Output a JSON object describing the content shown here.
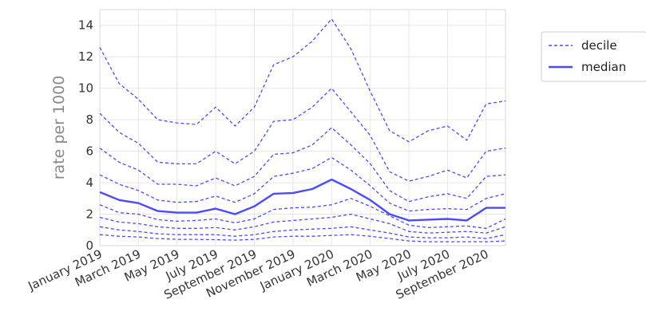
{
  "chart_data": {
    "type": "line",
    "xlabel": "",
    "ylabel": "rate per 1000",
    "ylim": [
      0,
      15
    ],
    "yticks": [
      "0",
      "2",
      "4",
      "6",
      "8",
      "10",
      "12",
      "14"
    ],
    "x": [
      "2019-01",
      "2019-02",
      "2019-03",
      "2019-04",
      "2019-05",
      "2019-06",
      "2019-07",
      "2019-08",
      "2019-09",
      "2019-10",
      "2019-11",
      "2019-12",
      "2020-01",
      "2020-02",
      "2020-03",
      "2020-04",
      "2020-05",
      "2020-06",
      "2020-07",
      "2020-08",
      "2020-09",
      "2020-10"
    ],
    "xtick_labels": [
      "January 2019",
      "March 2019",
      "May 2019",
      "July 2019",
      "September 2019",
      "November 2019",
      "January 2020",
      "March 2020",
      "May 2020",
      "July 2020",
      "September 2020"
    ],
    "grid": true,
    "legend_placement": "outside-right",
    "legend": [
      {
        "label": "decile",
        "style": "dashed"
      },
      {
        "label": "median",
        "style": "solid"
      }
    ],
    "color": "#4a4aff",
    "series": [
      {
        "role": "decile",
        "values": [
          0.7,
          0.6,
          0.55,
          0.45,
          0.4,
          0.4,
          0.38,
          0.35,
          0.4,
          0.55,
          0.6,
          0.6,
          0.65,
          0.7,
          0.6,
          0.45,
          0.3,
          0.25,
          0.25,
          0.25,
          0.25,
          0.3
        ]
      },
      {
        "role": "decile",
        "values": [
          1.2,
          1.0,
          0.9,
          0.75,
          0.7,
          0.7,
          0.7,
          0.6,
          0.7,
          0.9,
          1.0,
          1.05,
          1.1,
          1.2,
          1.0,
          0.8,
          0.55,
          0.5,
          0.5,
          0.55,
          0.45,
          0.7
        ]
      },
      {
        "role": "decile",
        "values": [
          1.8,
          1.5,
          1.4,
          1.2,
          1.1,
          1.1,
          1.15,
          1.0,
          1.2,
          1.5,
          1.6,
          1.7,
          1.8,
          2.0,
          1.7,
          1.4,
          0.9,
          0.8,
          0.85,
          0.9,
          0.8,
          1.2
        ]
      },
      {
        "role": "decile",
        "values": [
          2.6,
          2.1,
          2.0,
          1.65,
          1.55,
          1.6,
          1.7,
          1.45,
          1.7,
          2.3,
          2.4,
          2.45,
          2.6,
          3.0,
          2.5,
          1.9,
          1.3,
          1.15,
          1.2,
          1.25,
          1.1,
          1.7
        ]
      },
      {
        "role": "median",
        "values": [
          3.4,
          2.9,
          2.7,
          2.2,
          2.1,
          2.1,
          2.35,
          2.0,
          2.5,
          3.3,
          3.35,
          3.6,
          4.2,
          3.6,
          2.9,
          2.0,
          1.6,
          1.65,
          1.7,
          1.6,
          2.4,
          2.4
        ]
      },
      {
        "role": "decile",
        "values": [
          4.5,
          3.9,
          3.5,
          2.9,
          2.75,
          2.8,
          3.15,
          2.75,
          3.3,
          4.4,
          4.6,
          4.9,
          5.6,
          4.8,
          3.8,
          2.7,
          2.2,
          2.3,
          2.35,
          2.3,
          3.0,
          3.3
        ]
      },
      {
        "role": "decile",
        "values": [
          6.2,
          5.3,
          4.8,
          3.9,
          3.9,
          3.8,
          4.3,
          3.8,
          4.4,
          5.8,
          5.9,
          6.4,
          7.5,
          6.4,
          5.2,
          3.5,
          2.8,
          3.1,
          3.3,
          3.0,
          4.4,
          4.5
        ]
      },
      {
        "role": "decile",
        "values": [
          8.4,
          7.2,
          6.5,
          5.3,
          5.2,
          5.2,
          6.0,
          5.2,
          6.0,
          7.9,
          8.0,
          8.8,
          10.0,
          8.5,
          7.0,
          4.7,
          4.1,
          4.4,
          4.8,
          4.3,
          6.0,
          6.2
        ]
      },
      {
        "role": "decile",
        "values": [
          12.6,
          10.3,
          9.3,
          8.0,
          7.8,
          7.7,
          8.8,
          7.6,
          8.8,
          11.5,
          12.0,
          13.0,
          14.4,
          12.5,
          9.8,
          7.3,
          6.6,
          7.3,
          7.6,
          6.7,
          9.0,
          9.2
        ]
      }
    ]
  }
}
